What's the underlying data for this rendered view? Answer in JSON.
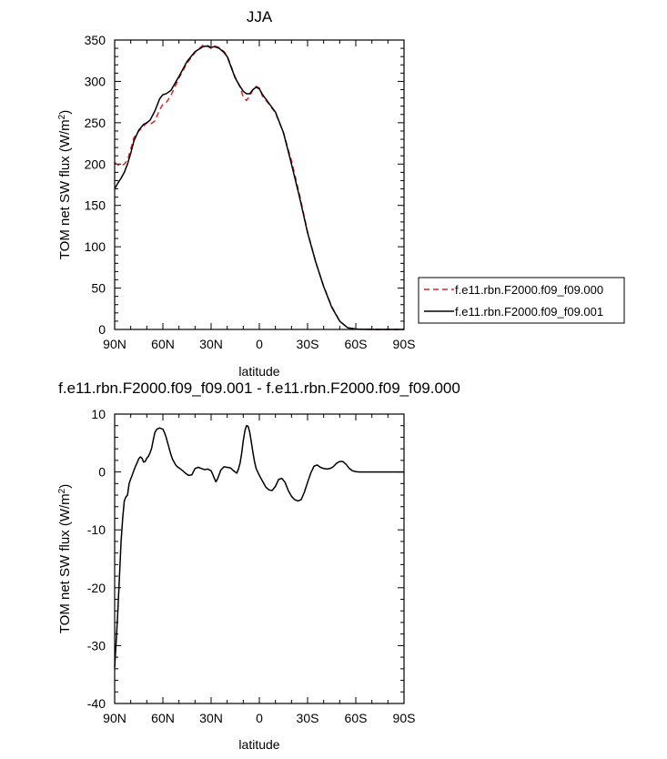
{
  "chart_data": [
    {
      "type": "line",
      "title": "JJA",
      "xlabel": "latitude",
      "ylabel": "TOM net SW flux (W/m",
      "ylabel_sup": "2",
      "ylabel_end": ")",
      "xlim": [
        90,
        -90
      ],
      "ylim": [
        0,
        350
      ],
      "x_ticks": [
        {
          "value": 90,
          "label": "90N"
        },
        {
          "value": 60,
          "label": "60N"
        },
        {
          "value": 30,
          "label": "30N"
        },
        {
          "value": 0,
          "label": "0"
        },
        {
          "value": -30,
          "label": "30S"
        },
        {
          "value": -60,
          "label": "60S"
        },
        {
          "value": -90,
          "label": "90S"
        }
      ],
      "y_ticks": [
        0,
        50,
        100,
        150,
        200,
        250,
        300,
        350
      ],
      "legend_position": "right",
      "series": [
        {
          "name": "f.e11.rbn.F2000.f09_f09.000",
          "color": "#d62728",
          "dash": "dashed",
          "x": [
            90,
            88,
            86,
            84,
            82,
            80,
            78,
            75,
            72,
            70,
            68,
            65,
            62,
            60,
            58,
            55,
            50,
            45,
            40,
            35,
            32,
            30,
            28,
            25,
            22,
            20,
            15,
            12,
            10,
            8,
            6,
            4,
            2,
            0,
            -2,
            -5,
            -10,
            -15,
            -20,
            -25,
            -30,
            -35,
            -40,
            -45,
            -50,
            -55,
            -60,
            -62,
            -65,
            -68,
            -70,
            -75,
            -80,
            -85,
            -90
          ],
          "y": [
            202,
            199,
            198,
            200,
            205,
            218,
            232,
            240,
            246,
            250,
            248,
            252,
            266,
            272,
            274,
            283,
            304,
            322,
            335,
            344,
            342,
            340,
            343,
            341,
            336,
            331,
            305,
            293,
            281,
            277,
            282,
            290,
            294,
            292,
            282,
            275,
            262,
            238,
            204,
            163,
            118,
            82,
            52,
            28,
            10,
            2,
            0.5,
            0.3,
            0.2,
            0.1,
            0,
            0,
            0,
            0,
            0
          ]
        },
        {
          "name": "f.e11.rbn.F2000.f09_f09.001",
          "color": "#000000",
          "dash": "solid",
          "x": [
            90,
            88,
            86,
            84,
            82,
            80,
            78,
            75,
            72,
            70,
            68,
            65,
            62,
            60,
            58,
            55,
            50,
            45,
            40,
            35,
            32,
            30,
            28,
            25,
            22,
            20,
            15,
            12,
            10,
            8,
            6,
            4,
            2,
            0,
            -2,
            -5,
            -10,
            -15,
            -20,
            -25,
            -30,
            -35,
            -40,
            -45,
            -50,
            -55,
            -60,
            -62,
            -65,
            -68,
            -70,
            -75,
            -80,
            -85,
            -90
          ],
          "y": [
            170,
            177,
            183,
            190,
            200,
            213,
            228,
            241,
            248,
            250,
            253,
            264,
            279,
            284,
            285,
            289,
            306,
            324,
            336,
            342,
            343,
            341,
            342,
            340,
            335,
            330,
            304,
            294,
            288,
            285,
            285,
            290,
            293,
            291,
            284,
            276,
            263,
            238,
            200,
            160,
            117,
            82,
            52,
            27,
            10,
            2,
            0.5,
            0.3,
            0.2,
            0.1,
            0,
            0,
            0,
            0,
            0
          ]
        }
      ]
    },
    {
      "type": "line",
      "title": "f.e11.rbn.F2000.f09_f09.001 - f.e11.rbn.F2000.f09_f09.000",
      "xlabel": "latitude",
      "ylabel": "TOM net SW flux (W/m",
      "ylabel_sup": "2",
      "ylabel_end": ")",
      "xlim": [
        90,
        -90
      ],
      "ylim": [
        -40,
        10
      ],
      "x_ticks": [
        {
          "value": 90,
          "label": "90N"
        },
        {
          "value": 60,
          "label": "60N"
        },
        {
          "value": 30,
          "label": "30N"
        },
        {
          "value": 0,
          "label": "0"
        },
        {
          "value": -30,
          "label": "30S"
        },
        {
          "value": -60,
          "label": "60S"
        },
        {
          "value": -90,
          "label": "90S"
        }
      ],
      "y_ticks": [
        -40,
        -30,
        -20,
        -10,
        0,
        10
      ],
      "series": [
        {
          "color": "#000000",
          "dash": "solid",
          "x": [
            90,
            89,
            88,
            87,
            86,
            85,
            84,
            83,
            82,
            81,
            80,
            79,
            78,
            77,
            76,
            75,
            74,
            73,
            72,
            71,
            70,
            69,
            68,
            67,
            66,
            65,
            64,
            63,
            62,
            61,
            60,
            59,
            58,
            57,
            56,
            55,
            54,
            53,
            52,
            51,
            50,
            48,
            46,
            44,
            42,
            40,
            38,
            36,
            34,
            32,
            30,
            29,
            28,
            27,
            26,
            24,
            22,
            20,
            18,
            16,
            14,
            13,
            12,
            11,
            10,
            9,
            8,
            7,
            6,
            5,
            4,
            3,
            2,
            1,
            0,
            -2,
            -4,
            -6,
            -8,
            -10,
            -12,
            -14,
            -16,
            -18,
            -20,
            -22,
            -24,
            -26,
            -28,
            -30,
            -32,
            -34,
            -36,
            -38,
            -40,
            -42,
            -44,
            -46,
            -48,
            -50,
            -52,
            -54,
            -56,
            -58,
            -60,
            -62,
            -64,
            -66,
            -68,
            -70,
            -72,
            -75,
            -78,
            -80,
            -85,
            -90
          ],
          "y": [
            -33.8,
            -29,
            -24,
            -18,
            -12,
            -8,
            -5,
            -4.3,
            -4,
            -2,
            -1.2,
            -0.5,
            0.3,
            1,
            1.6,
            2.3,
            2.6,
            2.4,
            1.7,
            1.8,
            2.4,
            2.7,
            3.3,
            4.1,
            5.5,
            6.8,
            7.3,
            7.5,
            7.6,
            7.5,
            7.4,
            6.8,
            6,
            5,
            4,
            3,
            2.2,
            1.7,
            1.2,
            0.9,
            0.7,
            0.3,
            -0.2,
            -0.6,
            -0.5,
            0.6,
            0.8,
            0.6,
            0.4,
            0.5,
            0.2,
            -0.4,
            -1.1,
            -1.7,
            -1.2,
            0.3,
            0.9,
            0.8,
            0.7,
            0.2,
            -0.2,
            0.5,
            1.5,
            3.2,
            5.4,
            7.1,
            8,
            7.9,
            6.9,
            5.2,
            3.4,
            1.8,
            0.6,
            0,
            -0.6,
            -1.6,
            -2.6,
            -3.1,
            -3.2,
            -2.5,
            -1.3,
            -1.1,
            -1.8,
            -3.2,
            -4.2,
            -4.8,
            -5,
            -4.8,
            -3.5,
            -1.8,
            -0.2,
            1,
            1.2,
            0.8,
            0.6,
            0.5,
            0.6,
            0.9,
            1.5,
            1.8,
            1.8,
            1.3,
            0.6,
            0.2,
            0.05,
            0,
            0,
            0,
            0,
            0,
            0,
            0,
            0,
            0,
            0,
            0
          ]
        }
      ]
    }
  ]
}
